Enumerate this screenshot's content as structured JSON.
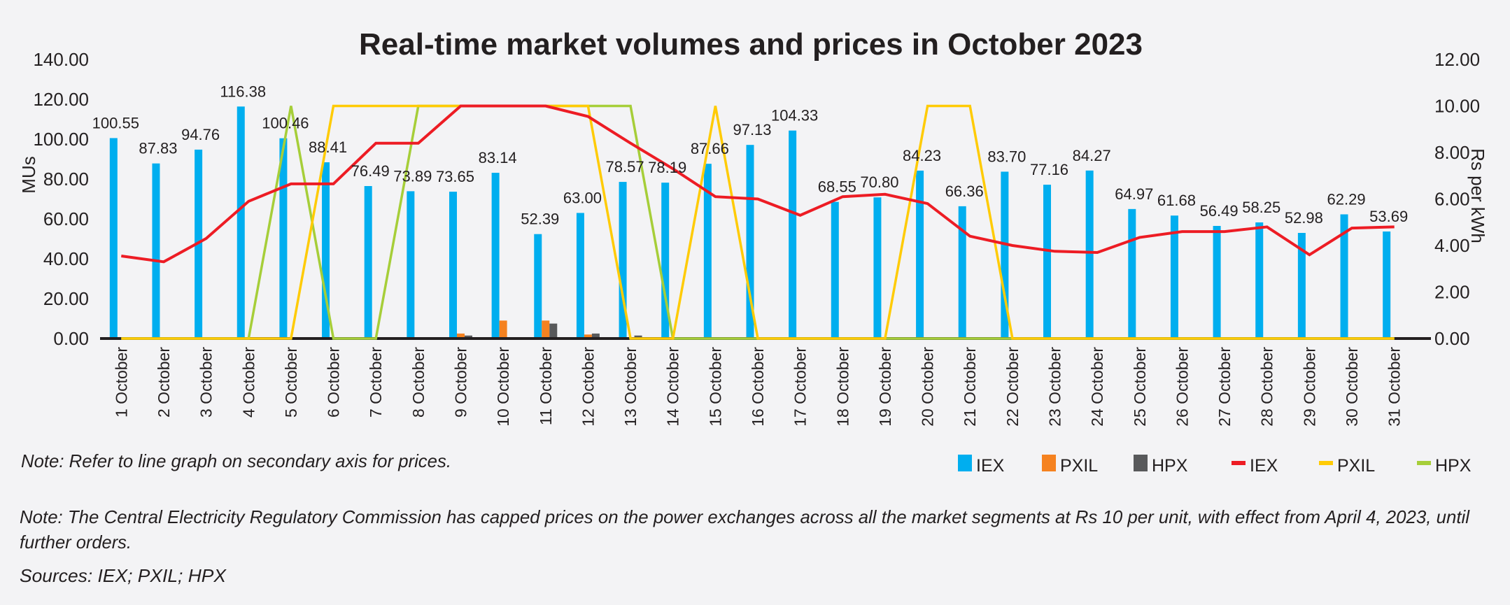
{
  "chart_data": {
    "type": "bar+line",
    "title": "Real-time market volumes and prices in October 2023",
    "ylabel": "MUs",
    "y2label": "Rs per kWh",
    "ylim": [
      0,
      140
    ],
    "y2lim": [
      0,
      12
    ],
    "yticks": [
      "0.00",
      "20.00",
      "40.00",
      "60.00",
      "80.00",
      "100.00",
      "120.00",
      "140.00"
    ],
    "y2ticks": [
      "0.00",
      "2.00",
      "4.00",
      "6.00",
      "8.00",
      "10.00",
      "12.00"
    ],
    "grid": false,
    "legend_position": "bottom-right",
    "categories": [
      "1 October",
      "2 October",
      "3 October",
      "4 October",
      "5 October",
      "6 October",
      "7 October",
      "8 October",
      "9 October",
      "10 October",
      "11 October",
      "12 October",
      "13 October",
      "14 October",
      "15 October",
      "16 October",
      "17 October",
      "18 October",
      "19 October",
      "20 October",
      "21 October",
      "22 October",
      "23 October",
      "24 October",
      "25 October",
      "26 October",
      "27 October",
      "28 October",
      "29 October",
      "30 October",
      "31 October"
    ],
    "bar_series": [
      {
        "name": "IEX",
        "color": "#00aeef",
        "axis": "primary",
        "values": [
          100.55,
          87.83,
          94.76,
          116.38,
          100.46,
          88.41,
          76.49,
          73.89,
          73.65,
          83.14,
          52.39,
          63.0,
          78.57,
          78.19,
          87.66,
          97.13,
          104.33,
          68.55,
          70.8,
          84.23,
          66.36,
          83.7,
          77.16,
          84.27,
          64.97,
          61.68,
          56.49,
          58.25,
          52.98,
          62.29,
          53.69
        ],
        "labels": [
          "100.55",
          "87.83",
          "94.76",
          "116.38",
          "100.46",
          "88.41",
          "76.49",
          "73.89",
          "73.65",
          "83.14",
          "52.39",
          "63.00",
          "78.57",
          "78.19",
          "87.66",
          "97.13",
          "104.33",
          "68.55",
          "70.80",
          "84.23",
          "66.36",
          "83.70",
          "77.16",
          "84.27",
          "64.97",
          "61.68",
          "56.49",
          "58.25",
          "52.98",
          "62.29",
          "53.69"
        ]
      },
      {
        "name": "PXIL",
        "color": "#f58220",
        "axis": "primary",
        "values": [
          0,
          0,
          0,
          0,
          0,
          0,
          0,
          0,
          2.5,
          9,
          9,
          2,
          0,
          0,
          0,
          0,
          0,
          0,
          0,
          0,
          0,
          0,
          0,
          0,
          0,
          0,
          0,
          0,
          0,
          0,
          0
        ]
      },
      {
        "name": "HPX",
        "color": "#58595b",
        "axis": "primary",
        "values": [
          0,
          0,
          0,
          0,
          0,
          0,
          0,
          0,
          1.5,
          0,
          7.5,
          2.5,
          1.5,
          0,
          0,
          0,
          0,
          0,
          0,
          0,
          0,
          0,
          0,
          0,
          0,
          0,
          0,
          0,
          0,
          0,
          0
        ]
      }
    ],
    "line_series": [
      {
        "name": "IEX",
        "color": "#ed1c24",
        "axis": "secondary",
        "values": [
          3.55,
          3.3,
          4.3,
          5.9,
          6.65,
          6.65,
          8.4,
          8.4,
          10,
          10,
          10,
          9.55,
          8.4,
          7.3,
          6.1,
          6.0,
          5.3,
          6.1,
          6.2,
          5.8,
          4.4,
          4.0,
          3.75,
          3.7,
          4.35,
          4.6,
          4.6,
          4.8,
          3.6,
          4.75,
          4.8
        ]
      },
      {
        "name": "PXIL",
        "color": "#ffcb05",
        "axis": "secondary",
        "values": [
          0,
          0,
          0,
          0,
          0,
          10,
          10,
          10,
          10,
          10,
          10,
          10,
          0,
          0,
          10,
          0,
          0,
          0,
          0,
          10,
          10,
          0,
          0,
          0,
          0,
          0,
          0,
          0,
          0,
          0,
          0
        ]
      },
      {
        "name": "HPX",
        "color": "#a6ce39",
        "axis": "secondary",
        "values": [
          0,
          0,
          0,
          0,
          10,
          0,
          0,
          10,
          10,
          10,
          10,
          10,
          10,
          0,
          0,
          0,
          0,
          0,
          0,
          0,
          0,
          0,
          0,
          0,
          0,
          0,
          0,
          0,
          0,
          0,
          0
        ]
      }
    ]
  },
  "notes": {
    "secondary_axis_note": "Note: Refer to line graph on secondary axis for prices.",
    "cap_note_line1": "Note: The Central Electricity Regulatory Commission has capped prices on the power exchanges across all the market segments at Rs 10 per unit, with effect from April 4, 2023, until",
    "cap_note_line2": "further orders.",
    "sources": "Sources: IEX; PXIL; HPX"
  }
}
